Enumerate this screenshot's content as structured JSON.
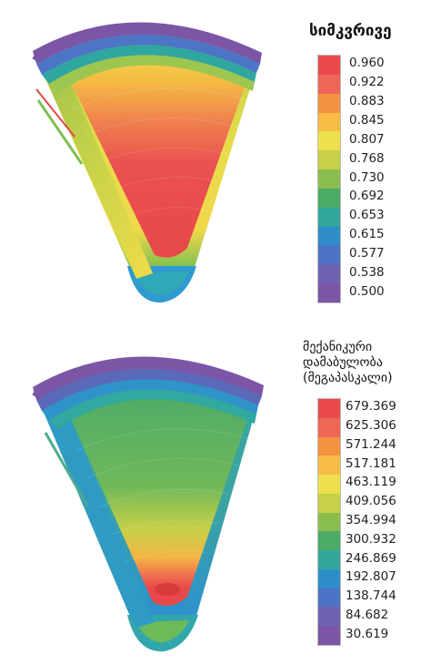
{
  "panels": [
    {
      "id": "top",
      "title_lines": [
        "სიმკვრივე"
      ],
      "levels": [
        "0.960",
        "0.922",
        "0.883",
        "0.845",
        "0.807",
        "0.768",
        "0.730",
        "0.692",
        "0.653",
        "0.615",
        "0.577",
        "0.538",
        "0.500"
      ],
      "colors": [
        "#ea4a4a",
        "#ee6656",
        "#f3923f",
        "#f7bb46",
        "#eedf4c",
        "#c6d048",
        "#8bbd4e",
        "#4cab67",
        "#31a89b",
        "#2e8ec9",
        "#4c73c4",
        "#6f62b2",
        "#7c55a6"
      ]
    },
    {
      "id": "bottom",
      "title_lines": [
        "მექანიკური",
        "დამაბულობა",
        "(მეგაპასკალი)"
      ],
      "levels": [
        "679.369",
        "625.306",
        "571.244",
        "517.181",
        "463.119",
        "409.056",
        "354.994",
        "300.932",
        "246.869",
        "192.807",
        "138.744",
        "84.682",
        "30.619"
      ],
      "colors": [
        "#ea4a4a",
        "#ee6656",
        "#f3923f",
        "#f7bb46",
        "#eedf4c",
        "#c6d048",
        "#8bbd4e",
        "#4cab67",
        "#31a89b",
        "#2e8ec9",
        "#4c73c4",
        "#6f62b2",
        "#7c55a6"
      ]
    }
  ]
}
